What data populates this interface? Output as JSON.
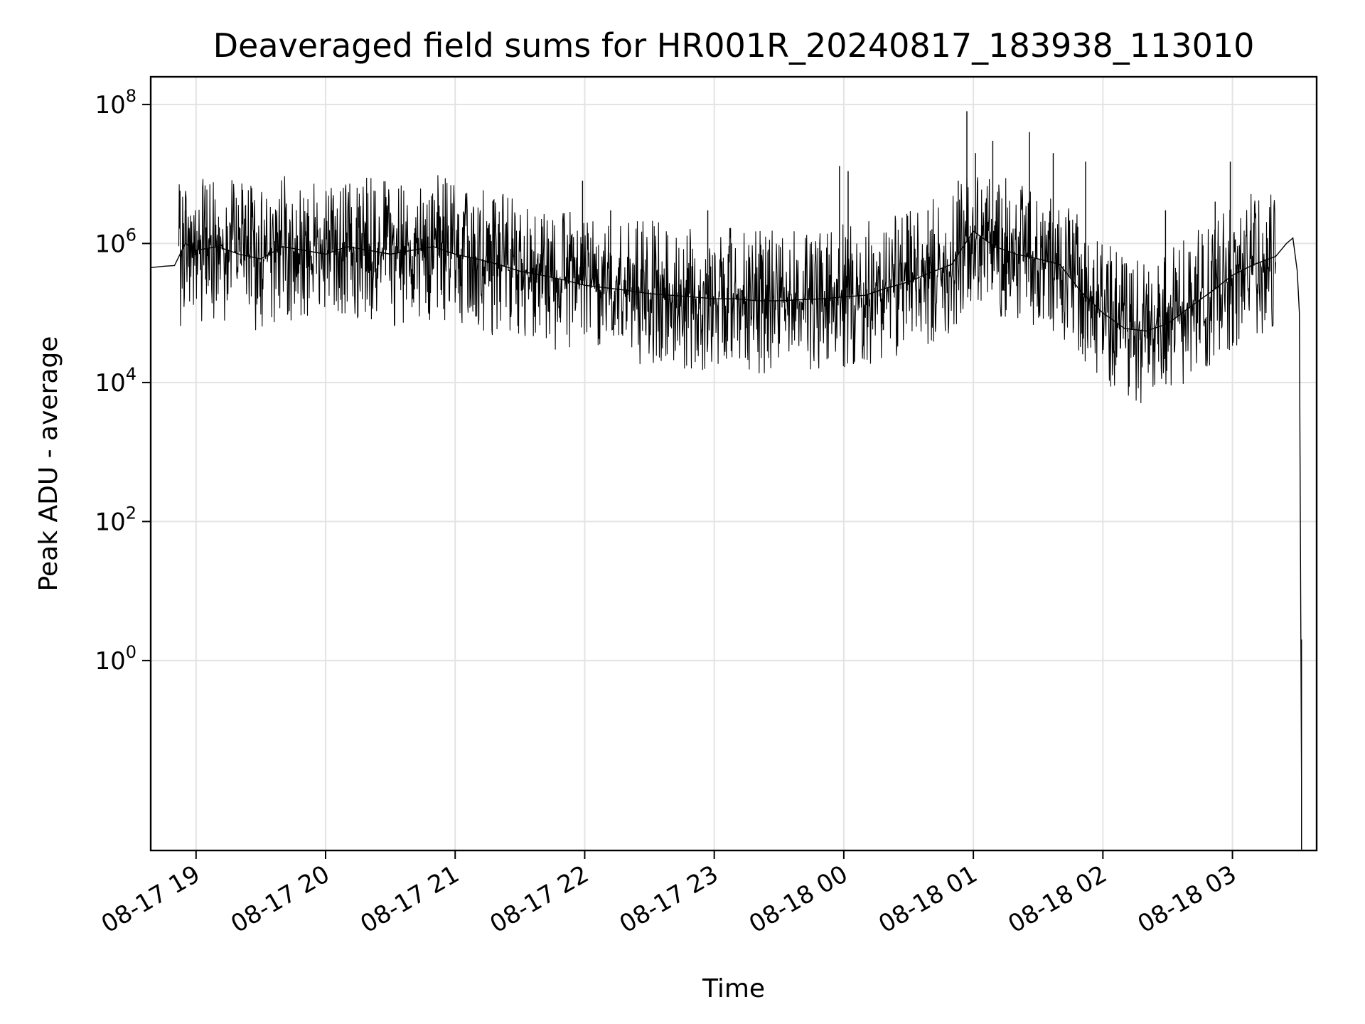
{
  "chart_data": {
    "type": "line",
    "title": "Deaveraged field sums for HR001R_20240817_183938_113010",
    "xlabel": "Time",
    "ylabel": "Peak ADU - average",
    "yscale": "log",
    "ylim": [
      0.00185,
      250000000
    ],
    "xlim": [
      "2024-08-17 18:39",
      "2024-08-18 03:39"
    ],
    "grid": true,
    "line_color": "#000000",
    "x_ticks": [
      {
        "value": "2024-08-17 19:00",
        "label": "08-17 19"
      },
      {
        "value": "2024-08-17 20:00",
        "label": "08-17 20"
      },
      {
        "value": "2024-08-17 21:00",
        "label": "08-17 21"
      },
      {
        "value": "2024-08-17 22:00",
        "label": "08-17 22"
      },
      {
        "value": "2024-08-17 23:00",
        "label": "08-17 23"
      },
      {
        "value": "2024-08-18 00:00",
        "label": "08-18 00"
      },
      {
        "value": "2024-08-18 01:00",
        "label": "08-18 01"
      },
      {
        "value": "2024-08-18 02:00",
        "label": "08-18 02"
      },
      {
        "value": "2024-08-18 03:00",
        "label": "08-18 03"
      }
    ],
    "y_ticks": [
      {
        "value": 1,
        "base": "10",
        "exp": "0"
      },
      {
        "value": 100,
        "base": "10",
        "exp": "2"
      },
      {
        "value": 10000,
        "base": "10",
        "exp": "4"
      },
      {
        "value": 1000000,
        "base": "10",
        "exp": "6"
      },
      {
        "value": 100000000,
        "base": "10",
        "exp": "8"
      }
    ],
    "series": [
      {
        "x": [
          "2024-08-17 18:39",
          "2024-08-17 18:45",
          "2024-08-17 18:50",
          "2024-08-17 18:55",
          "2024-08-17 19:00",
          "2024-08-17 19:10",
          "2024-08-17 19:20",
          "2024-08-17 19:30",
          "2024-08-17 19:40",
          "2024-08-17 19:50",
          "2024-08-17 20:00",
          "2024-08-17 20:10",
          "2024-08-17 20:20",
          "2024-08-17 20:30",
          "2024-08-17 20:40",
          "2024-08-17 20:50",
          "2024-08-17 21:00",
          "2024-08-17 21:10",
          "2024-08-17 21:20",
          "2024-08-17 21:30",
          "2024-08-17 21:40",
          "2024-08-17 21:50",
          "2024-08-17 22:00",
          "2024-08-17 22:10",
          "2024-08-17 22:20",
          "2024-08-17 22:30",
          "2024-08-17 22:40",
          "2024-08-17 22:50",
          "2024-08-17 23:00",
          "2024-08-17 23:10",
          "2024-08-17 23:20",
          "2024-08-17 23:30",
          "2024-08-17 23:40",
          "2024-08-17 23:50",
          "2024-08-18 00:00",
          "2024-08-18 00:10",
          "2024-08-18 00:20",
          "2024-08-18 00:30",
          "2024-08-18 00:40",
          "2024-08-18 00:50",
          "2024-08-18 01:00",
          "2024-08-18 01:10",
          "2024-08-18 01:20",
          "2024-08-18 01:30",
          "2024-08-18 01:40",
          "2024-08-18 01:50",
          "2024-08-18 02:00",
          "2024-08-18 02:10",
          "2024-08-18 02:20",
          "2024-08-18 02:30",
          "2024-08-18 02:40",
          "2024-08-18 02:50",
          "2024-08-18 03:00",
          "2024-08-18 03:10",
          "2024-08-18 03:20",
          "2024-08-18 03:25",
          "2024-08-18 03:28",
          "2024-08-18 03:30",
          "2024-08-18 03:31",
          "2024-08-18 03:32",
          "2024-08-18 03:32",
          "2024-08-18 03:32"
        ],
        "y": [
          450000,
          470000,
          480000,
          1000000,
          800000,
          900000,
          700000,
          600000,
          900000,
          800000,
          700000,
          900000,
          800000,
          700000,
          800000,
          900000,
          700000,
          600000,
          500000,
          400000,
          350000,
          300000,
          250000,
          230000,
          210000,
          190000,
          180000,
          170000,
          160000,
          160000,
          150000,
          150000,
          155000,
          160000,
          170000,
          180000,
          230000,
          280000,
          380000,
          500000,
          1500000,
          900000,
          700000,
          600000,
          500000,
          200000,
          100000,
          60000,
          55000,
          70000,
          120000,
          200000,
          350000,
          500000,
          650000,
          1000000,
          1200000,
          400000,
          100000,
          0.02,
          2,
          0.0019
        ],
        "spike_x": [
          "2024-08-17 18:55",
          "2024-08-17 19:27",
          "2024-08-17 20:03",
          "2024-08-17 20:49",
          "2024-08-17 21:59",
          "2024-08-17 22:12",
          "2024-08-17 22:57",
          "2024-08-17 23:58",
          "2024-08-18 00:02",
          "2024-08-18 00:39",
          "2024-08-18 00:53",
          "2024-08-18 00:57",
          "2024-08-18 01:01",
          "2024-08-18 01:09",
          "2024-08-18 01:26",
          "2024-08-18 01:37",
          "2024-08-18 01:52",
          "2024-08-18 02:29",
          "2024-08-18 02:52",
          "2024-08-18 02:59"
        ],
        "spike_y": [
          3000000,
          3500000,
          3000000,
          3000000,
          8000000,
          3000000,
          3000000,
          13000000,
          11000000,
          3000000,
          8000000,
          80000000,
          20000000,
          30000000,
          40000000,
          20000000,
          15000000,
          3000000,
          4000000,
          15000000
        ]
      }
    ]
  }
}
